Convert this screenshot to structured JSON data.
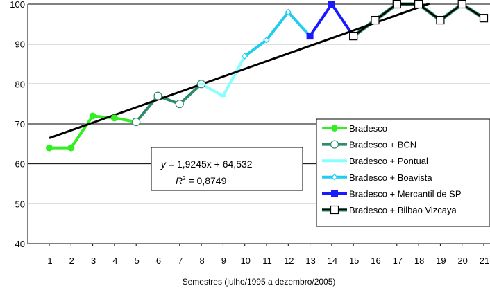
{
  "chart_data": {
    "type": "line",
    "xlabel": "Semestres (julho/1995 a dezembro/2005)",
    "ylabel": "",
    "ylim": [
      40,
      100
    ],
    "yticks": [
      40,
      50,
      60,
      70,
      80,
      90,
      100
    ],
    "xticks": [
      "1",
      "2",
      "3",
      "4",
      "5",
      "6",
      "7",
      "8",
      "9",
      "10",
      "11",
      "12",
      "13",
      "14",
      "15",
      "16",
      "17",
      "18",
      "19",
      "20",
      "21"
    ],
    "grid": "horizontal",
    "legend_position": "right",
    "series": [
      {
        "name": "Bradesco",
        "color": "#33ee22",
        "marker": "filled-circle",
        "x": [
          1,
          2,
          3,
          4,
          5
        ],
        "y": [
          64,
          64,
          72,
          71.5,
          70.5
        ]
      },
      {
        "name": "Bradesco + BCN",
        "color": "#2e8b6a",
        "marker": "open-circle",
        "x": [
          5,
          6,
          7,
          8
        ],
        "y": [
          70.5,
          77,
          75,
          80
        ]
      },
      {
        "name": "Bradesco + Pontual",
        "color": "#88ffff",
        "marker": "dash",
        "x": [
          8,
          9,
          10
        ],
        "y": [
          80,
          77,
          87
        ]
      },
      {
        "name": "Bradesco + Boavista",
        "color": "#22ccee",
        "marker": "diamond",
        "x": [
          10,
          11,
          12,
          13
        ],
        "y": [
          87,
          91,
          98,
          92
        ]
      },
      {
        "name": "Bradesco + Mercantil de SP",
        "color": "#1a1aff",
        "marker": "filled-square",
        "x": [
          13,
          14,
          15
        ],
        "y": [
          92,
          100,
          92
        ]
      },
      {
        "name": "Bradesco + Bilbao Vizcaya",
        "color": "#000000",
        "marker": "open-square",
        "x": [
          15,
          16,
          17,
          18,
          19,
          20,
          21
        ],
        "y": [
          92,
          96,
          100,
          100,
          96,
          100,
          96.5
        ]
      }
    ],
    "trendline": {
      "slope": 1.9245,
      "intercept": 64.532,
      "x_range": [
        1,
        18.5
      ]
    },
    "annotation": {
      "equation_y_prefix": "y",
      "equation_rest": " = 1,9245x + 64,532",
      "r2_prefix": "R",
      "r2_sup": "2",
      "r2_rest": " = 0,8749"
    }
  }
}
